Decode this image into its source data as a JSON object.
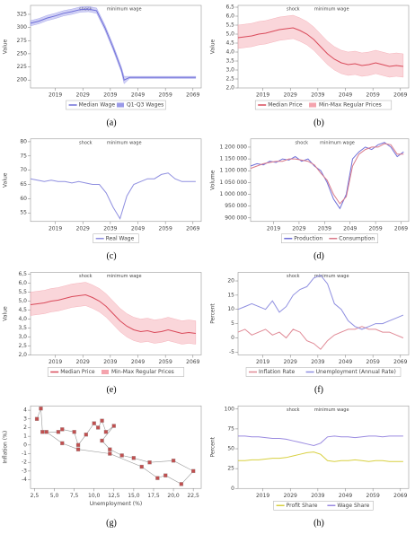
{
  "chart_data": [
    {
      "type": "line",
      "caption": "(a)",
      "ylabel": "Value",
      "annotations": [
        {
          "text": "shock",
          "x": 2030
        },
        {
          "text": "minimum wage",
          "x": 2044
        }
      ],
      "x": [
        2010,
        2013,
        2016,
        2019,
        2022,
        2025,
        2028,
        2031,
        2034,
        2037,
        2040,
        2043,
        2044,
        2046,
        2050,
        2055,
        2060,
        2065,
        2070
      ],
      "series": [
        {
          "name": "Median Wage",
          "color": "#6f6fd8",
          "values": [
            308,
            312,
            318,
            322,
            327,
            330,
            334,
            335,
            332,
            300,
            262,
            220,
            200,
            205,
            205,
            205,
            205,
            205,
            205
          ]
        },
        {
          "name": "Q1-Q3 Wages",
          "color": "#9a9ae8",
          "low": [
            303,
            307,
            313,
            317,
            322,
            325,
            329,
            330,
            327,
            295,
            257,
            215,
            193,
            203,
            203,
            203,
            203,
            203,
            203
          ],
          "high": [
            313,
            317,
            323,
            327,
            332,
            335,
            339,
            340,
            337,
            305,
            267,
            225,
            207,
            207,
            207,
            207,
            207,
            207,
            207
          ]
        }
      ],
      "xlim": [
        2010,
        2072
      ],
      "xticks": [
        2019,
        2029,
        2039,
        2049,
        2059,
        2069
      ],
      "ylim": [
        185,
        342
      ],
      "yticks": [
        200,
        225,
        250,
        275,
        300,
        325
      ]
    },
    {
      "type": "line",
      "caption": "(b)",
      "ylabel": "Value",
      "annotations": [
        {
          "text": "shock",
          "x": 2030
        },
        {
          "text": "minimum wage",
          "x": 2044
        }
      ],
      "x": [
        2010,
        2012.5,
        2015,
        2017.5,
        2020,
        2022.5,
        2025,
        2027.5,
        2030,
        2032.5,
        2035,
        2037.5,
        2040,
        2042.5,
        2045,
        2047.5,
        2050,
        2052.5,
        2055,
        2057.5,
        2060,
        2062.5,
        2065,
        2067.5,
        2070
      ],
      "series": [
        {
          "name": "Median Price",
          "color": "#d94a5a",
          "values": [
            4.8,
            4.85,
            4.9,
            5.0,
            5.05,
            5.15,
            5.25,
            5.3,
            5.35,
            5.2,
            5.0,
            4.7,
            4.3,
            3.9,
            3.6,
            3.4,
            3.3,
            3.35,
            3.25,
            3.3,
            3.4,
            3.3,
            3.2,
            3.25,
            3.2
          ]
        },
        {
          "name": "Min-Max Regular Prices",
          "color": "#f4a3ad",
          "low": [
            4.2,
            4.25,
            4.3,
            4.4,
            4.45,
            4.55,
            4.65,
            4.7,
            4.75,
            4.6,
            4.4,
            4.1,
            3.7,
            3.3,
            3.0,
            2.8,
            2.7,
            2.75,
            2.65,
            2.7,
            2.8,
            2.7,
            2.6,
            2.65,
            2.6
          ],
          "high": [
            5.5,
            5.55,
            5.6,
            5.7,
            5.75,
            5.85,
            5.95,
            6.0,
            6.05,
            5.9,
            5.7,
            5.4,
            5.0,
            4.6,
            4.3,
            4.1,
            4.0,
            4.05,
            3.95,
            4.0,
            4.1,
            4.0,
            3.9,
            3.95,
            3.9
          ]
        }
      ],
      "xlim": [
        2010,
        2072
      ],
      "xticks": [
        2019,
        2029,
        2039,
        2049,
        2059,
        2069
      ],
      "ylim": [
        2,
        6.6
      ],
      "yticks": [
        {
          "value": 2,
          "label": "2,0"
        },
        {
          "value": 2.5,
          "label": "2,5"
        },
        {
          "value": 3,
          "label": "3,0"
        },
        {
          "value": 3.5,
          "label": "3,5"
        },
        {
          "value": 4,
          "label": "4,0"
        },
        {
          "value": 4.5,
          "label": "4,5"
        },
        {
          "value": 5,
          "label": "5,0"
        },
        {
          "value": 5.5,
          "label": "5,5"
        },
        {
          "value": 6,
          "label": "6,0"
        },
        {
          "value": 6.5,
          "label": "6,5"
        }
      ]
    },
    {
      "type": "line",
      "caption": "(c)",
      "ylabel": "Value",
      "annotations": [
        {
          "text": "shock",
          "x": 2030
        },
        {
          "text": "minimum wage",
          "x": 2044
        }
      ],
      "x": [
        2010,
        2012.5,
        2015,
        2017.5,
        2020,
        2022.5,
        2025,
        2027.5,
        2030,
        2032.5,
        2035,
        2037.5,
        2040,
        2042.5,
        2045,
        2047.5,
        2050,
        2052.5,
        2055,
        2057.5,
        2060,
        2062.5,
        2065,
        2067.5,
        2070
      ],
      "series": [
        {
          "name": "Real Wage",
          "color": "#8f8fe0",
          "values": [
            67,
            66.5,
            66,
            66.5,
            66,
            66,
            65.5,
            66,
            65.5,
            65,
            65,
            62,
            57,
            53,
            61,
            65,
            66,
            67,
            67,
            68.5,
            69,
            67,
            66,
            66,
            66
          ]
        }
      ],
      "xlim": [
        2010,
        2072
      ],
      "xticks": [
        2019,
        2029,
        2039,
        2049,
        2059,
        2069
      ],
      "ylim": [
        52,
        81
      ],
      "yticks": [
        55,
        60,
        65,
        70,
        75,
        80
      ]
    },
    {
      "type": "line",
      "caption": "(d)",
      "ylabel": "Volume",
      "annotations": [
        {
          "text": "shock",
          "x": 2030
        },
        {
          "text": "minimum wage",
          "x": 2044
        }
      ],
      "x": [
        2010,
        2012.5,
        2015,
        2017.5,
        2020,
        2022.5,
        2025,
        2027.5,
        2030,
        2032.5,
        2035,
        2037.5,
        2040,
        2042.5,
        2045,
        2047.5,
        2050,
        2052.5,
        2055,
        2057.5,
        2060,
        2062.5,
        2065,
        2067.5,
        2070
      ],
      "series": [
        {
          "name": "Production",
          "color": "#6f6fd8",
          "values": [
            1120000,
            1130000,
            1125000,
            1140000,
            1135000,
            1150000,
            1145000,
            1160000,
            1140000,
            1150000,
            1120000,
            1100000,
            1050000,
            980000,
            940000,
            1000000,
            1150000,
            1180000,
            1200000,
            1190000,
            1210000,
            1220000,
            1200000,
            1160000,
            1180000
          ]
        },
        {
          "name": "Consumption",
          "color": "#d97a8a",
          "values": [
            1110000,
            1120000,
            1130000,
            1135000,
            1140000,
            1140000,
            1150000,
            1150000,
            1145000,
            1140000,
            1125000,
            1090000,
            1060000,
            1000000,
            960000,
            990000,
            1120000,
            1170000,
            1190000,
            1200000,
            1200000,
            1215000,
            1210000,
            1170000,
            1170000
          ]
        }
      ],
      "xlim": [
        2010,
        2072
      ],
      "xticks": [
        2019,
        2029,
        2039,
        2049,
        2059,
        2069
      ],
      "ylim": [
        885000,
        1235000
      ],
      "yticks": [
        {
          "value": 900000,
          "label": "900 000"
        },
        {
          "value": 950000,
          "label": "950 000"
        },
        {
          "value": 1000000,
          "label": "1 000 000"
        },
        {
          "value": 1050000,
          "label": "1 050 000"
        },
        {
          "value": 1100000,
          "label": "1 100 000"
        },
        {
          "value": 1150000,
          "label": "1 150 000"
        },
        {
          "value": 1200000,
          "label": "1 200 000"
        }
      ]
    },
    {
      "type": "line",
      "caption": "(e)",
      "ylabel": "Value",
      "annotations": [
        {
          "text": "shock",
          "x": 2030
        },
        {
          "text": "minimum wage",
          "x": 2044
        }
      ],
      "x": [
        2010,
        2012.5,
        2015,
        2017.5,
        2020,
        2022.5,
        2025,
        2027.5,
        2030,
        2032.5,
        2035,
        2037.5,
        2040,
        2042.5,
        2045,
        2047.5,
        2050,
        2052.5,
        2055,
        2057.5,
        2060,
        2062.5,
        2065,
        2067.5,
        2070
      ],
      "series": [
        {
          "name": "Median Price",
          "color": "#d94a5a",
          "values": [
            4.8,
            4.85,
            4.9,
            5.0,
            5.05,
            5.15,
            5.25,
            5.3,
            5.35,
            5.2,
            5.0,
            4.7,
            4.3,
            3.9,
            3.6,
            3.4,
            3.3,
            3.35,
            3.25,
            3.3,
            3.4,
            3.3,
            3.2,
            3.25,
            3.2
          ]
        },
        {
          "name": "Min-Max Regular Prices",
          "color": "#f4a3ad",
          "low": [
            4.2,
            4.25,
            4.3,
            4.4,
            4.45,
            4.55,
            4.65,
            4.7,
            4.75,
            4.6,
            4.4,
            4.1,
            3.7,
            3.3,
            3.0,
            2.8,
            2.7,
            2.75,
            2.65,
            2.7,
            2.8,
            2.7,
            2.6,
            2.65,
            2.6
          ],
          "high": [
            5.5,
            5.55,
            5.6,
            5.7,
            5.75,
            5.85,
            5.95,
            6.0,
            6.05,
            5.9,
            5.7,
            5.4,
            5.0,
            4.6,
            4.3,
            4.1,
            4.0,
            4.05,
            3.95,
            4.0,
            4.1,
            4.0,
            3.9,
            3.95,
            3.9
          ]
        }
      ],
      "xlim": [
        2010,
        2072
      ],
      "xticks": [
        2019,
        2029,
        2039,
        2049,
        2059,
        2069
      ],
      "ylim": [
        2,
        6.6
      ],
      "yticks": [
        {
          "value": 2,
          "label": "2,0"
        },
        {
          "value": 2.5,
          "label": "2,5"
        },
        {
          "value": 3,
          "label": "3,0"
        },
        {
          "value": 3.5,
          "label": "3,5"
        },
        {
          "value": 4,
          "label": "4,0"
        },
        {
          "value": 4.5,
          "label": "4,5"
        },
        {
          "value": 5,
          "label": "5,0"
        },
        {
          "value": 5.5,
          "label": "5,5"
        },
        {
          "value": 6,
          "label": "6,0"
        },
        {
          "value": 6.5,
          "label": "6,5"
        }
      ]
    },
    {
      "type": "line",
      "caption": "(f)",
      "ylabel": "Percent",
      "annotations": [
        {
          "text": "shock",
          "x": 2030
        },
        {
          "text": "minimum wage",
          "x": 2044
        }
      ],
      "x": [
        2010,
        2012.5,
        2015,
        2017.5,
        2020,
        2022.5,
        2025,
        2027.5,
        2030,
        2032.5,
        2035,
        2037.5,
        2040,
        2042.5,
        2045,
        2047.5,
        2050,
        2052.5,
        2055,
        2057.5,
        2060,
        2062.5,
        2065,
        2067.5,
        2070
      ],
      "series": [
        {
          "name": "Inflation Rate",
          "color": "#e08a96",
          "values": [
            2,
            3,
            1,
            2,
            3,
            1,
            2,
            0,
            3,
            2,
            -1,
            -2,
            -4,
            -1,
            1,
            2,
            3,
            3,
            4,
            3,
            3,
            2,
            2,
            1,
            0
          ]
        },
        {
          "name": "Unemployment (Annual Rate)",
          "color": "#8f8fe0",
          "values": [
            10,
            11,
            12,
            11,
            10,
            13,
            9,
            11,
            15,
            17,
            18,
            21,
            22,
            19,
            12,
            10,
            6,
            4,
            3,
            4,
            5,
            5,
            6,
            7,
            8
          ]
        }
      ],
      "xlim": [
        2010,
        2072
      ],
      "xticks": [
        2019,
        2029,
        2039,
        2049,
        2059,
        2069
      ],
      "ylim": [
        -6,
        23
      ],
      "yticks": [
        -5,
        0,
        5,
        10,
        15,
        20
      ]
    },
    {
      "type": "scatter",
      "caption": "(g)",
      "ylabel": "Inflation (%)",
      "xlabel": "Unemployment (%)",
      "color": "#c05050",
      "line_color": "#999999",
      "x": [
        2.8,
        3.3,
        3.5,
        5.5,
        6,
        7.5,
        8,
        9,
        10,
        10.5,
        11,
        11.5,
        12.5,
        11,
        12,
        13.5,
        15,
        17,
        20,
        22.5,
        21,
        19,
        18,
        16,
        12,
        8,
        6,
        4
      ],
      "values": [
        3,
        4.2,
        1.5,
        1.5,
        1.8,
        1.5,
        0,
        1.2,
        2.5,
        2,
        2.8,
        1.5,
        2.2,
        0.5,
        -0.5,
        -1.2,
        -1.5,
        -2,
        -1.8,
        -3,
        -4.5,
        -3.5,
        -3.8,
        -2.5,
        -1,
        -0.5,
        0.2,
        1.5
      ],
      "xlim": [
        2,
        23.5
      ],
      "xticks": [
        {
          "value": 2.5,
          "label": "2,5"
        },
        {
          "value": 5,
          "label": "5,0"
        },
        {
          "value": 7.5,
          "label": "7,5"
        },
        {
          "value": 10,
          "label": "10,0"
        },
        {
          "value": 12.5,
          "label": "12,5"
        },
        {
          "value": 15,
          "label": "15,0"
        },
        {
          "value": 17.5,
          "label": "17,5"
        },
        {
          "value": 20,
          "label": "20,0"
        },
        {
          "value": 22.5,
          "label": "22,5"
        }
      ],
      "ylim": [
        -5,
        4.5
      ],
      "yticks": [
        4,
        3,
        2,
        1,
        0,
        -1,
        -2,
        -3,
        -4
      ]
    },
    {
      "type": "line",
      "caption": "(h)",
      "ylabel": "Percent",
      "annotations": [
        {
          "text": "shock",
          "x": 2030
        },
        {
          "text": "minimum wage",
          "x": 2044
        }
      ],
      "x": [
        2010,
        2012.5,
        2015,
        2017.5,
        2020,
        2022.5,
        2025,
        2027.5,
        2030,
        2032.5,
        2035,
        2037.5,
        2040,
        2042.5,
        2045,
        2047.5,
        2050,
        2052.5,
        2055,
        2057.5,
        2060,
        2062.5,
        2065,
        2067.5,
        2070
      ],
      "series": [
        {
          "name": "Profit Share",
          "color": "#d8d040",
          "values": [
            35,
            35,
            36,
            36,
            37,
            38,
            38,
            39,
            41,
            43,
            45,
            46,
            43,
            35,
            34,
            35,
            35,
            36,
            35,
            34,
            35,
            35,
            34,
            34,
            34
          ]
        },
        {
          "name": "Wage Share",
          "color": "#9a8ae0",
          "values": [
            66,
            66,
            65,
            65,
            64,
            63,
            63,
            62,
            60,
            58,
            56,
            54,
            57,
            65,
            66,
            65,
            65,
            64,
            65,
            66,
            66,
            65,
            66,
            66,
            66
          ]
        }
      ],
      "xlim": [
        2010,
        2072
      ],
      "xticks": [
        2019,
        2029,
        2039,
        2049,
        2059,
        2069
      ],
      "ylim": [
        0,
        104
      ],
      "yticks": [
        0,
        25,
        50,
        75,
        100
      ]
    }
  ]
}
